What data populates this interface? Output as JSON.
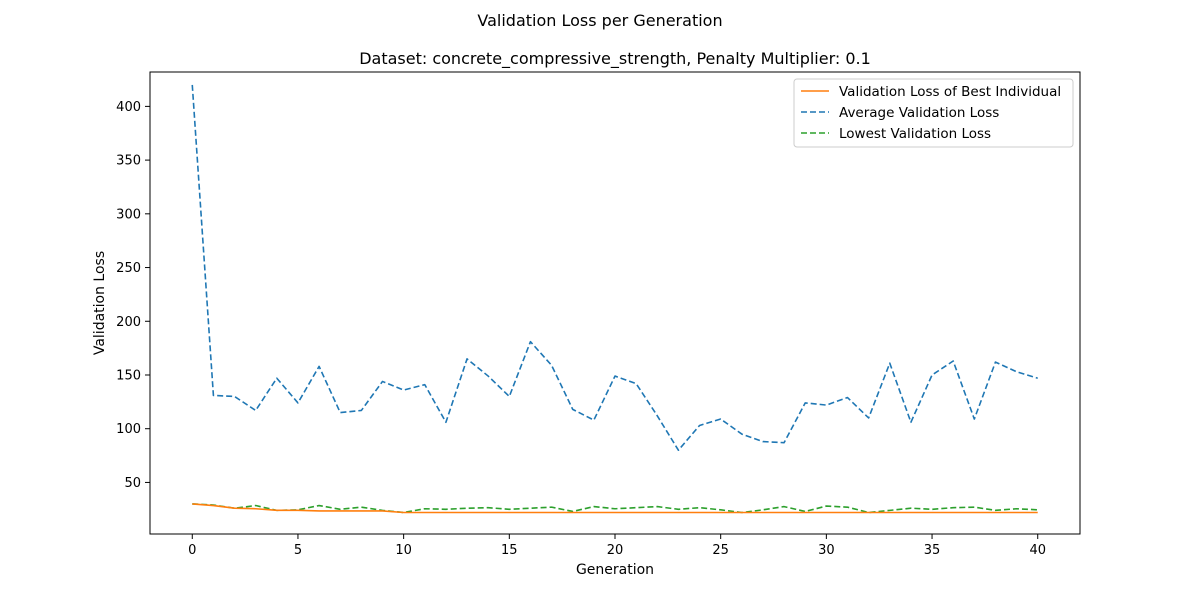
{
  "figure": {
    "suptitle": "Validation Loss per Generation"
  },
  "chart_data": {
    "type": "line",
    "title": "Dataset: concrete_compressive_strength, Penalty Multiplier: 0.1",
    "xlabel": "Generation",
    "ylabel": "Validation Loss",
    "xlim": [
      -2,
      42
    ],
    "ylim": [
      2,
      432
    ],
    "xticks": [
      0,
      5,
      10,
      15,
      20,
      25,
      30,
      35,
      40
    ],
    "yticks": [
      50,
      100,
      150,
      200,
      250,
      300,
      350,
      400
    ],
    "grid": false,
    "legend_position": "top-right",
    "x": [
      0,
      1,
      2,
      3,
      4,
      5,
      6,
      7,
      8,
      9,
      10,
      11,
      12,
      13,
      14,
      15,
      16,
      17,
      18,
      19,
      20,
      21,
      22,
      23,
      24,
      25,
      26,
      27,
      28,
      29,
      30,
      31,
      32,
      33,
      34,
      35,
      36,
      37,
      38,
      39,
      40
    ],
    "series": [
      {
        "name": "Validation Loss of Best Individual",
        "color": "#ff7f0e",
        "style": "solid",
        "values": [
          30,
          28.5,
          26,
          25.5,
          24,
          24,
          23.5,
          23.5,
          23.5,
          23.5,
          22,
          22,
          22,
          22,
          22,
          22,
          22,
          22,
          22,
          22,
          22,
          22,
          22,
          22,
          22,
          22,
          22,
          22,
          22,
          22,
          22,
          22,
          22,
          22,
          22,
          22,
          22,
          22,
          22,
          22,
          22
        ]
      },
      {
        "name": "Average Validation Loss",
        "color": "#1f77b4",
        "style": "dashed",
        "values": [
          420,
          131,
          130,
          117,
          147,
          124,
          158,
          115,
          117,
          144,
          136,
          141,
          106,
          165,
          149,
          130,
          181,
          159,
          118,
          108,
          149,
          142,
          112,
          80,
          103,
          109,
          95,
          88,
          87,
          124,
          122,
          129,
          110,
          161,
          106,
          150,
          163,
          109,
          162,
          153,
          147
        ]
      },
      {
        "name": "Lowest Validation Loss",
        "color": "#2ca02c",
        "style": "dashed",
        "values": [
          30,
          29,
          26,
          28.5,
          24,
          24.5,
          28.5,
          25,
          27,
          24,
          22,
          25.5,
          25,
          26,
          26.5,
          25,
          26,
          27,
          23,
          27.5,
          25.5,
          26.5,
          27.5,
          25,
          26.5,
          24.5,
          22,
          24.5,
          27.5,
          23,
          28,
          27,
          22,
          24,
          26,
          25,
          26.5,
          27,
          24,
          25.5,
          24.5
        ]
      }
    ]
  }
}
